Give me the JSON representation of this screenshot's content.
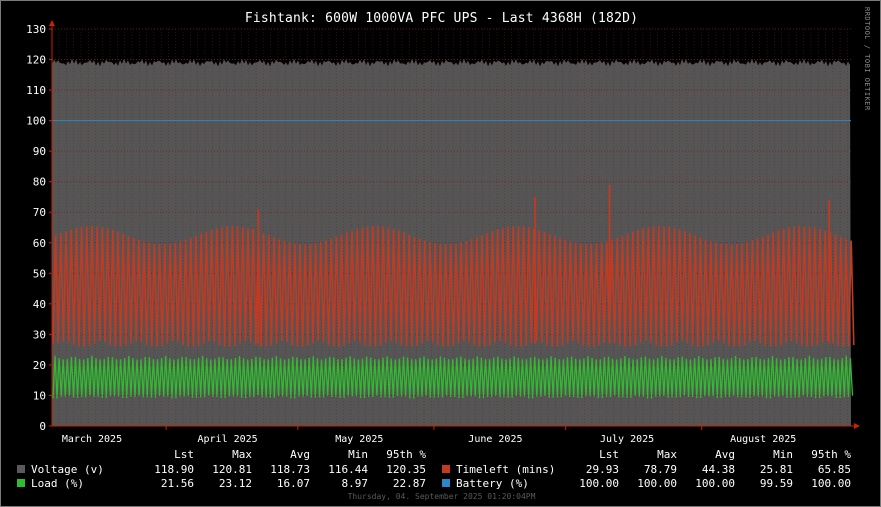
{
  "title": "Fishtank: 600W 1000VA PFC UPS - Last 4368H (182D)",
  "watermark": "RRDTOOL / TOBI OETIKER",
  "timestamp": "Thursday, 04. September 2025 01:20:04PM",
  "colors": {
    "background": "#000000",
    "plot_bg": "#555555",
    "grid": "#7a1c1c",
    "voltage": "#5a5a5a",
    "timeleft": "#c23a22",
    "load": "#2ebd2e",
    "battery": "#2a88c8",
    "axis_arrow": "#cc2200"
  },
  "legend": {
    "headers_left": [
      "Lst",
      "Max",
      "Avg",
      "Min",
      "95th %"
    ],
    "headers_right": [
      "Lst",
      "Max",
      "Avg",
      "Min",
      "95th %"
    ],
    "rows_left": [
      {
        "name": "Voltage (v)",
        "values": [
          "118.90",
          "120.81",
          "118.73",
          "116.44",
          "120.35"
        ]
      },
      {
        "name": "Load (%)",
        "values": [
          "21.56",
          "23.12",
          "16.07",
          "8.97",
          "22.87"
        ]
      }
    ],
    "rows_right": [
      {
        "name": "Timeleft (mins)",
        "values": [
          "29.93",
          "78.79",
          "44.38",
          "25.81",
          "65.85"
        ]
      },
      {
        "name": "Battery (%)",
        "values": [
          "100.00",
          "100.00",
          "100.00",
          "99.59",
          "100.00"
        ]
      }
    ]
  },
  "chart_data": {
    "type": "area",
    "title": "Fishtank: 600W 1000VA PFC UPS - Last 4368H (182D)",
    "ylim": [
      0,
      130
    ],
    "yticks": [
      0,
      10,
      20,
      30,
      40,
      50,
      60,
      70,
      80,
      90,
      100,
      110,
      120,
      130
    ],
    "x_range": [
      "2025-03-06",
      "2025-09-04"
    ],
    "month_ticks": [
      {
        "label": "March 2025",
        "date": "2025-03-01"
      },
      {
        "label": "April 2025",
        "date": "2025-04-01"
      },
      {
        "label": "May 2025",
        "date": "2025-05-01"
      },
      {
        "label": "June 2025",
        "date": "2025-06-01"
      },
      {
        "label": "July 2025",
        "date": "2025-07-01"
      },
      {
        "label": "August 2025",
        "date": "2025-08-01"
      }
    ],
    "grid": true,
    "series": [
      {
        "name": "Voltage (v)",
        "style": "area",
        "approx_range": [
          117,
          121
        ]
      },
      {
        "name": "Timeleft (mins)",
        "style": "oscillating",
        "approx_min": 27,
        "approx_max": [
          58,
          67
        ]
      },
      {
        "name": "Load (%)",
        "style": "oscillating",
        "approx_range": [
          9,
          23
        ]
      },
      {
        "name": "Battery (%)",
        "style": "line",
        "value": 100
      }
    ],
    "spikes": [
      {
        "series": "Timeleft (mins)",
        "date": "2025-07-11",
        "value": 79
      },
      {
        "series": "Timeleft (mins)",
        "date": "2025-06-24",
        "value": 75
      },
      {
        "series": "Timeleft (mins)",
        "date": "2025-08-30",
        "value": 74
      },
      {
        "series": "Timeleft (mins)",
        "date": "2025-04-22",
        "value": 71
      }
    ]
  }
}
